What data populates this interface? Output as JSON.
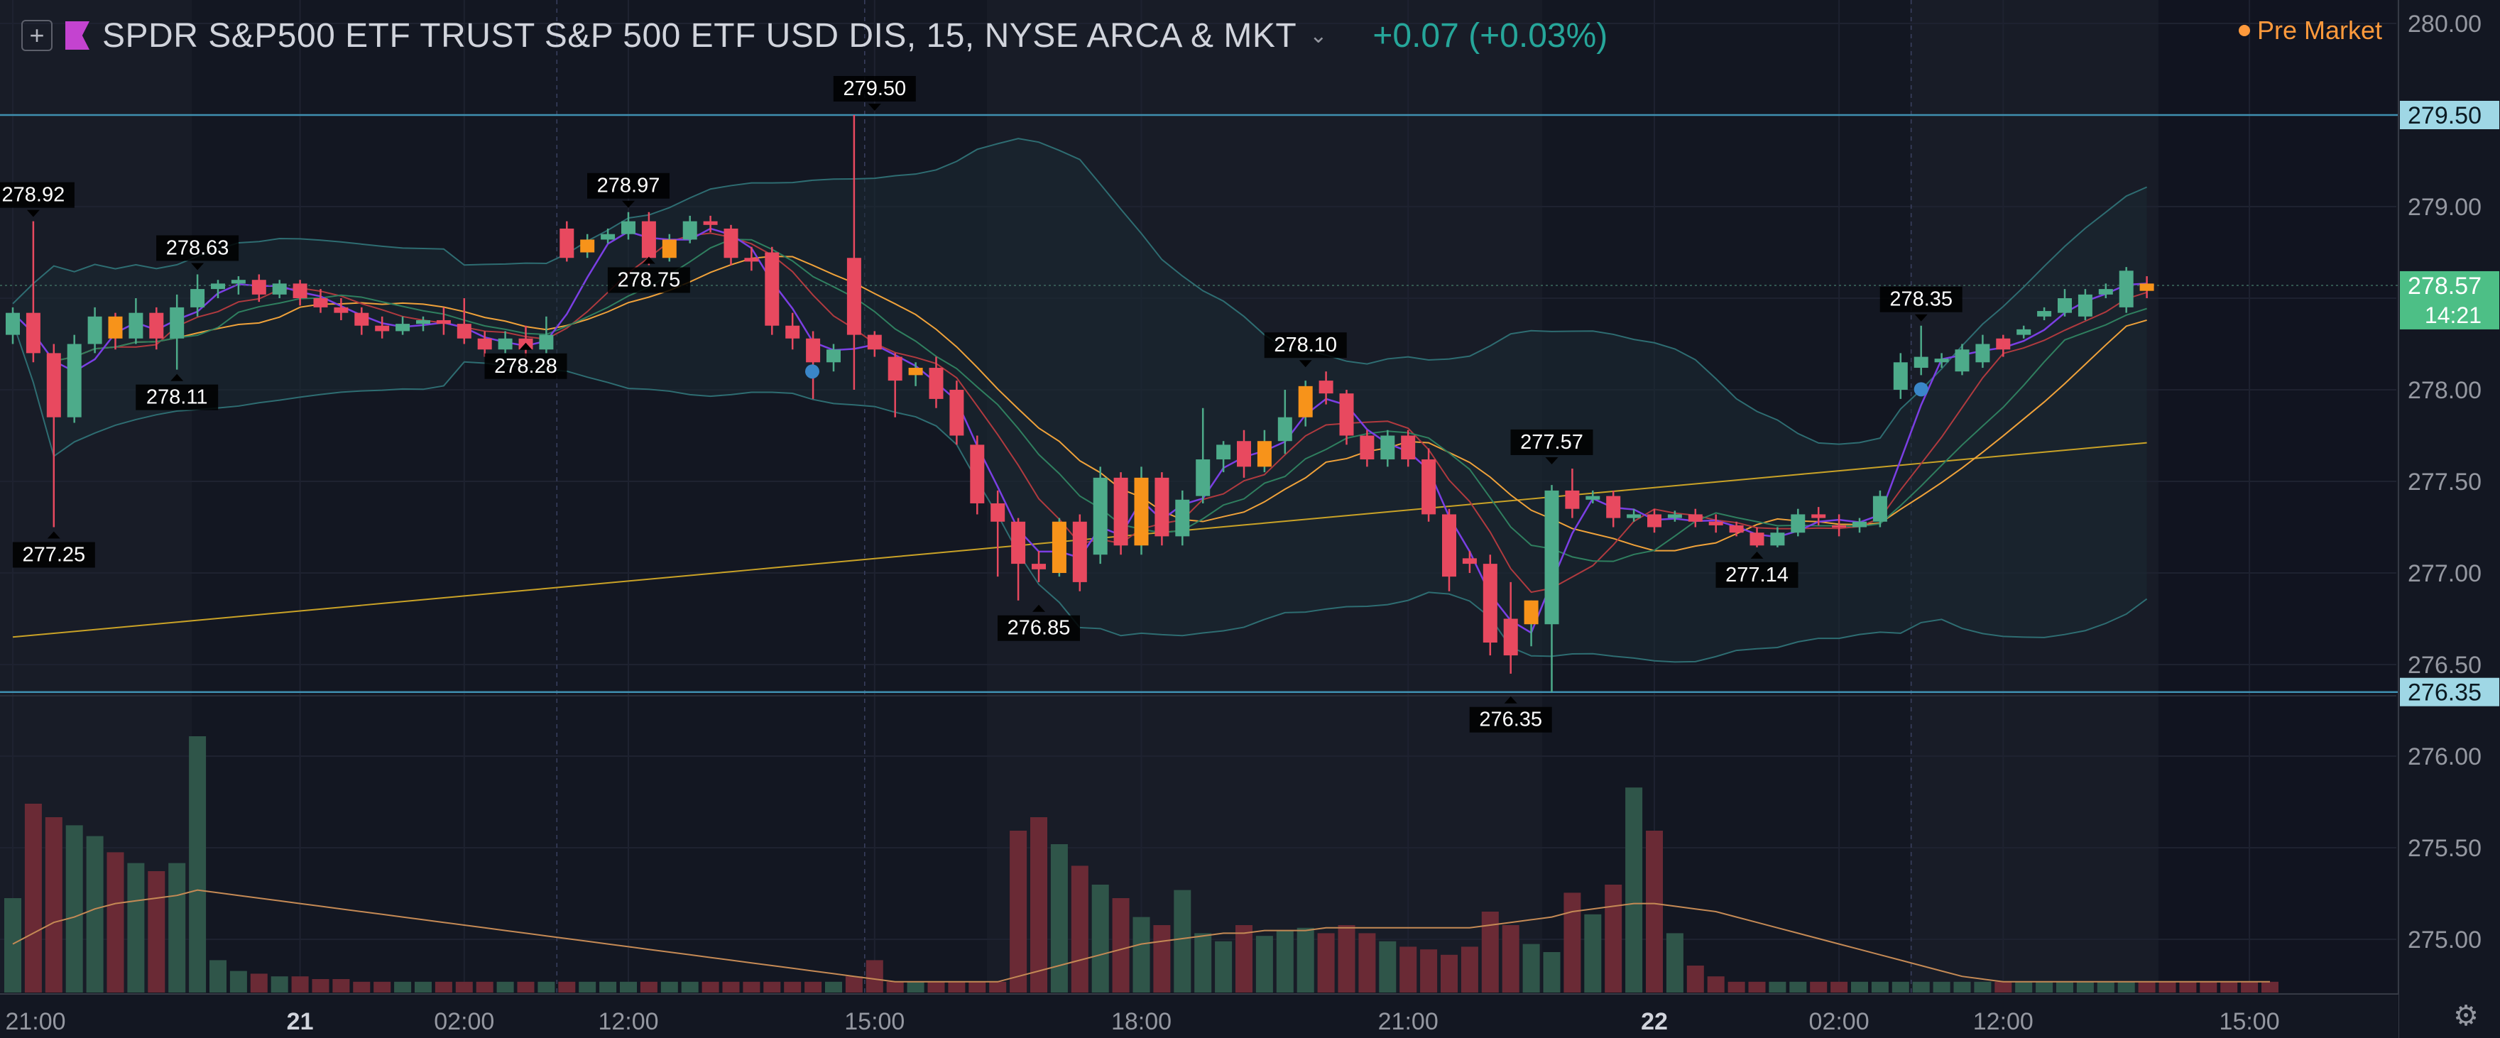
{
  "header": {
    "add_icon": "plus-square-icon",
    "flag_color": "#c443d0",
    "symbol_title": "SPDR S&P500 ETF TRUST S&P 500 ETF USD DIS, 15, NYSE ARCA & MKT",
    "change": "+0.07 (+0.03%)",
    "session_badge": "Pre Market"
  },
  "colors": {
    "up": "#4dab8a",
    "down": "#e8495f",
    "hollow_up": "#f7931a",
    "volume_up": "#2f5549",
    "volume_down": "#6a2a35",
    "bollinger": "#2e6d72",
    "ma_yellow": "#c9a227",
    "ma_orange": "#f0a23a",
    "ma_red": "#b03a3f",
    "ma_purple": "#7b3fe4",
    "ma_green": "#2f7f5f",
    "price_label": "#9fd7e5",
    "last_label": "#4dbf86"
  },
  "chart_data": {
    "type": "candlestick",
    "timeframe": "15",
    "y_axis": {
      "ticks": [
        "280.00",
        "279.50",
        "279.00",
        "278.50",
        "278.00",
        "277.50",
        "277.00",
        "276.50",
        "276.00",
        "275.50",
        "275.00"
      ],
      "ylim": [
        274.75,
        280.1
      ]
    },
    "x_axis": {
      "ticks": [
        {
          "i": 0,
          "label": "21:00",
          "bold": false
        },
        {
          "i": 14,
          "label": "21",
          "bold": true
        },
        {
          "i": 22,
          "label": "02:00",
          "bold": false
        },
        {
          "i": 30,
          "label": "12:00",
          "bold": false
        },
        {
          "i": 42,
          "label": "15:00",
          "bold": false
        },
        {
          "i": 55,
          "label": "18:00",
          "bold": false
        },
        {
          "i": 68,
          "label": "21:00",
          "bold": false
        },
        {
          "i": 80,
          "label": "22",
          "bold": true
        },
        {
          "i": 89,
          "label": "02:00",
          "bold": false
        },
        {
          "i": 97,
          "label": "12:00",
          "bold": false
        },
        {
          "i": 109,
          "label": "15:00",
          "bold": false
        }
      ]
    },
    "horizontal_lines": [
      {
        "label": "279.50",
        "value": 279.5
      },
      {
        "label": "276.35",
        "value": 276.35
      }
    ],
    "last_price": {
      "label": "278.57",
      "value": 278.57,
      "countdown": "14:21"
    },
    "annotations": [
      {
        "label": "278.92",
        "i": 1,
        "value": 278.92,
        "pos": "above"
      },
      {
        "label": "277.25",
        "i": 2,
        "value": 277.25,
        "pos": "below"
      },
      {
        "label": "278.63",
        "i": 9,
        "value": 278.63,
        "pos": "above"
      },
      {
        "label": "278.11",
        "i": 8,
        "value": 278.11,
        "pos": "below"
      },
      {
        "label": "278.97",
        "i": 30,
        "value": 278.97,
        "pos": "above"
      },
      {
        "label": "278.75",
        "i": 31,
        "value": 278.75,
        "pos": "below"
      },
      {
        "label": "278.28",
        "i": 25,
        "value": 278.28,
        "pos": "below"
      },
      {
        "label": "279.50",
        "i": 42,
        "value": 279.5,
        "pos": "above"
      },
      {
        "label": "276.85",
        "i": 50,
        "value": 276.85,
        "pos": "below"
      },
      {
        "label": "278.10",
        "i": 63,
        "value": 278.1,
        "pos": "above"
      },
      {
        "label": "277.57",
        "i": 75,
        "value": 277.57,
        "pos": "above"
      },
      {
        "label": "276.35",
        "i": 73,
        "value": 276.35,
        "pos": "below"
      },
      {
        "label": "277.14",
        "i": 85,
        "value": 277.14,
        "pos": "below"
      },
      {
        "label": "278.35",
        "i": 93,
        "value": 278.35,
        "pos": "above"
      }
    ],
    "candles": [
      {
        "o": 278.3,
        "h": 278.45,
        "c": 278.42,
        "l": 278.25
      },
      {
        "o": 278.42,
        "h": 278.92,
        "c": 278.2,
        "l": 278.15
      },
      {
        "o": 278.2,
        "h": 278.25,
        "c": 277.85,
        "l": 277.25
      },
      {
        "o": 277.85,
        "h": 278.3,
        "c": 278.25,
        "l": 277.82
      },
      {
        "o": 278.25,
        "h": 278.45,
        "c": 278.4,
        "l": 278.2
      },
      {
        "o": 278.4,
        "h": 278.42,
        "c": 278.28,
        "l": 278.22
      },
      {
        "o": 278.28,
        "h": 278.5,
        "c": 278.42,
        "l": 278.25
      },
      {
        "o": 278.42,
        "h": 278.45,
        "c": 278.28,
        "l": 278.22
      },
      {
        "o": 278.28,
        "h": 278.52,
        "c": 278.45,
        "l": 278.11
      },
      {
        "o": 278.45,
        "h": 278.63,
        "c": 278.55,
        "l": 278.4
      },
      {
        "o": 278.55,
        "h": 278.6,
        "c": 278.58,
        "l": 278.5
      },
      {
        "o": 278.58,
        "h": 278.62,
        "c": 278.6,
        "l": 278.52
      },
      {
        "o": 278.6,
        "h": 278.63,
        "c": 278.52,
        "l": 278.48
      },
      {
        "o": 278.52,
        "h": 278.6,
        "c": 278.58,
        "l": 278.5
      },
      {
        "o": 278.58,
        "h": 278.6,
        "c": 278.5,
        "l": 278.46
      },
      {
        "o": 278.5,
        "h": 278.55,
        "c": 278.45,
        "l": 278.42
      },
      {
        "o": 278.45,
        "h": 278.5,
        "c": 278.42,
        "l": 278.38
      },
      {
        "o": 278.42,
        "h": 278.45,
        "c": 278.35,
        "l": 278.3
      },
      {
        "o": 278.35,
        "h": 278.4,
        "c": 278.32,
        "l": 278.28
      },
      {
        "o": 278.32,
        "h": 278.4,
        "c": 278.36,
        "l": 278.3
      },
      {
        "o": 278.36,
        "h": 278.4,
        "c": 278.38,
        "l": 278.32
      },
      {
        "o": 278.38,
        "h": 278.45,
        "c": 278.36,
        "l": 278.3
      },
      {
        "o": 278.36,
        "h": 278.5,
        "c": 278.28,
        "l": 278.25
      },
      {
        "o": 278.28,
        "h": 278.32,
        "c": 278.22,
        "l": 278.18
      },
      {
        "o": 278.22,
        "h": 278.32,
        "c": 278.28,
        "l": 278.2
      },
      {
        "o": 278.28,
        "h": 278.35,
        "c": 278.22,
        "l": 278.18
      },
      {
        "o": 278.22,
        "h": 278.4,
        "c": 278.3,
        "l": 278.2
      },
      {
        "o": 278.88,
        "h": 278.92,
        "c": 278.72,
        "l": 278.7
      },
      {
        "o": 278.75,
        "h": 278.85,
        "c": 278.82,
        "l": 278.72
      },
      {
        "o": 278.82,
        "h": 278.88,
        "c": 278.85,
        "l": 278.8
      },
      {
        "o": 278.85,
        "h": 278.97,
        "c": 278.92,
        "l": 278.82
      },
      {
        "o": 278.92,
        "h": 278.97,
        "c": 278.72,
        "l": 278.68
      },
      {
        "o": 278.72,
        "h": 278.85,
        "c": 278.82,
        "l": 278.7
      },
      {
        "o": 278.82,
        "h": 278.95,
        "c": 278.92,
        "l": 278.8
      },
      {
        "o": 278.92,
        "h": 278.95,
        "c": 278.9,
        "l": 278.86
      },
      {
        "o": 278.88,
        "h": 278.9,
        "c": 278.72,
        "l": 278.68
      },
      {
        "o": 278.72,
        "h": 278.78,
        "c": 278.7,
        "l": 278.65
      },
      {
        "o": 278.75,
        "h": 278.78,
        "c": 278.35,
        "l": 278.3
      },
      {
        "o": 278.35,
        "h": 278.42,
        "c": 278.28,
        "l": 278.22
      },
      {
        "o": 278.28,
        "h": 278.32,
        "c": 278.15,
        "l": 277.95
      },
      {
        "o": 278.15,
        "h": 278.25,
        "c": 278.22,
        "l": 278.1
      },
      {
        "o": 278.72,
        "h": 279.5,
        "c": 278.3,
        "l": 278.0
      },
      {
        "o": 278.3,
        "h": 278.32,
        "c": 278.22,
        "l": 278.18
      },
      {
        "o": 278.18,
        "h": 278.2,
        "c": 278.05,
        "l": 277.85
      },
      {
        "o": 278.08,
        "h": 278.15,
        "c": 278.12,
        "l": 278.02
      },
      {
        "o": 278.12,
        "h": 278.18,
        "c": 277.95,
        "l": 277.9
      },
      {
        "o": 278.0,
        "h": 278.05,
        "c": 277.75,
        "l": 277.7
      },
      {
        "o": 277.7,
        "h": 277.75,
        "c": 277.38,
        "l": 277.32
      },
      {
        "o": 277.38,
        "h": 277.45,
        "c": 277.28,
        "l": 276.98
      },
      {
        "o": 277.28,
        "h": 277.3,
        "c": 277.05,
        "l": 276.85
      },
      {
        "o": 277.05,
        "h": 277.12,
        "c": 277.02,
        "l": 276.95
      },
      {
        "o": 277.0,
        "h": 277.3,
        "c": 277.28,
        "l": 276.98
      },
      {
        "o": 277.28,
        "h": 277.32,
        "c": 276.95,
        "l": 276.9
      },
      {
        "o": 277.1,
        "h": 277.58,
        "c": 277.52,
        "l": 277.05
      },
      {
        "o": 277.52,
        "h": 277.55,
        "c": 277.15,
        "l": 277.1
      },
      {
        "o": 277.15,
        "h": 277.58,
        "c": 277.52,
        "l": 277.1
      },
      {
        "o": 277.52,
        "h": 277.55,
        "c": 277.2,
        "l": 277.15
      },
      {
        "o": 277.2,
        "h": 277.45,
        "c": 277.4,
        "l": 277.15
      },
      {
        "o": 277.42,
        "h": 277.9,
        "c": 277.62,
        "l": 277.38
      },
      {
        "o": 277.62,
        "h": 277.72,
        "c": 277.7,
        "l": 277.55
      },
      {
        "o": 277.72,
        "h": 277.78,
        "c": 277.58,
        "l": 277.52
      },
      {
        "o": 277.58,
        "h": 277.78,
        "c": 277.72,
        "l": 277.55
      },
      {
        "o": 277.72,
        "h": 278.0,
        "c": 277.85,
        "l": 277.65
      },
      {
        "o": 277.85,
        "h": 278.05,
        "c": 278.02,
        "l": 277.8
      },
      {
        "o": 278.05,
        "h": 278.1,
        "c": 277.98,
        "l": 277.92
      },
      {
        "o": 277.98,
        "h": 278.0,
        "c": 277.75,
        "l": 277.7
      },
      {
        "o": 277.75,
        "h": 277.78,
        "c": 277.62,
        "l": 277.58
      },
      {
        "o": 277.62,
        "h": 277.78,
        "c": 277.75,
        "l": 277.58
      },
      {
        "o": 277.75,
        "h": 277.78,
        "c": 277.62,
        "l": 277.58
      },
      {
        "o": 277.62,
        "h": 277.68,
        "c": 277.32,
        "l": 277.28
      },
      {
        "o": 277.32,
        "h": 277.35,
        "c": 276.98,
        "l": 276.9
      },
      {
        "o": 277.08,
        "h": 277.12,
        "c": 277.05,
        "l": 277.0
      },
      {
        "o": 277.05,
        "h": 277.1,
        "c": 276.62,
        "l": 276.55
      },
      {
        "o": 276.75,
        "h": 276.95,
        "c": 276.55,
        "l": 276.45
      },
      {
        "o": 276.72,
        "h": 276.85,
        "c": 276.85,
        "l": 276.6
      },
      {
        "o": 276.72,
        "h": 277.48,
        "c": 277.45,
        "l": 276.35
      },
      {
        "o": 277.45,
        "h": 277.57,
        "c": 277.35,
        "l": 277.3
      },
      {
        "o": 277.4,
        "h": 277.45,
        "c": 277.42,
        "l": 277.38
      },
      {
        "o": 277.42,
        "h": 277.45,
        "c": 277.3,
        "l": 277.25
      },
      {
        "o": 277.3,
        "h": 277.35,
        "c": 277.32,
        "l": 277.28
      },
      {
        "o": 277.32,
        "h": 277.35,
        "c": 277.25,
        "l": 277.22
      },
      {
        "o": 277.3,
        "h": 277.34,
        "c": 277.32,
        "l": 277.28
      },
      {
        "o": 277.32,
        "h": 277.35,
        "c": 277.28,
        "l": 277.25
      },
      {
        "o": 277.28,
        "h": 277.32,
        "c": 277.26,
        "l": 277.22
      },
      {
        "o": 277.26,
        "h": 277.28,
        "c": 277.22,
        "l": 277.2
      },
      {
        "o": 277.22,
        "h": 277.25,
        "c": 277.15,
        "l": 277.14
      },
      {
        "o": 277.15,
        "h": 277.25,
        "c": 277.22,
        "l": 277.14
      },
      {
        "o": 277.22,
        "h": 277.35,
        "c": 277.32,
        "l": 277.2
      },
      {
        "o": 277.32,
        "h": 277.36,
        "c": 277.3,
        "l": 277.26
      },
      {
        "o": 277.26,
        "h": 277.32,
        "c": 277.25,
        "l": 277.2
      },
      {
        "o": 277.25,
        "h": 277.3,
        "c": 277.28,
        "l": 277.22
      },
      {
        "o": 277.28,
        "h": 277.45,
        "c": 277.42,
        "l": 277.25
      },
      {
        "o": 278.0,
        "h": 278.2,
        "c": 278.15,
        "l": 277.95
      },
      {
        "o": 278.12,
        "h": 278.35,
        "c": 278.18,
        "l": 278.08
      },
      {
        "o": 278.15,
        "h": 278.2,
        "c": 278.17,
        "l": 278.12
      },
      {
        "o": 278.1,
        "h": 278.25,
        "c": 278.22,
        "l": 278.08
      },
      {
        "o": 278.15,
        "h": 278.3,
        "c": 278.25,
        "l": 278.12
      },
      {
        "o": 278.28,
        "h": 278.3,
        "c": 278.22,
        "l": 278.18
      },
      {
        "o": 278.3,
        "h": 278.35,
        "c": 278.33,
        "l": 278.28
      },
      {
        "o": 278.4,
        "h": 278.45,
        "c": 278.43,
        "l": 278.38
      },
      {
        "o": 278.42,
        "h": 278.55,
        "c": 278.5,
        "l": 278.4
      },
      {
        "o": 278.4,
        "h": 278.55,
        "c": 278.52,
        "l": 278.38
      },
      {
        "o": 278.52,
        "h": 278.58,
        "c": 278.55,
        "l": 278.5
      },
      {
        "o": 278.45,
        "h": 278.67,
        "c": 278.65,
        "l": 278.42
      },
      {
        "o": 278.58,
        "h": 278.62,
        "c": 278.54,
        "l": 278.5
      }
    ],
    "hollow_orange_indices": [
      5,
      28,
      32,
      44,
      51,
      55,
      61,
      63,
      74,
      104
    ],
    "volume": [
      35,
      70,
      65,
      62,
      58,
      52,
      48,
      45,
      48,
      95,
      12,
      8,
      7,
      6,
      6,
      5,
      5,
      4,
      4,
      4,
      4,
      4,
      4,
      4,
      4,
      4,
      4,
      4,
      4,
      4,
      4,
      4,
      4,
      4,
      4,
      4,
      4,
      4,
      4,
      4,
      4,
      6,
      12,
      4,
      4,
      4,
      4,
      4,
      4,
      60,
      65,
      55,
      47,
      40,
      35,
      28,
      25,
      38,
      22,
      19,
      25,
      21,
      23,
      24,
      22,
      25,
      22,
      19,
      17,
      16,
      14,
      17,
      30,
      25,
      18,
      15,
      37,
      29,
      40,
      76,
      60,
      22,
      10,
      6,
      4,
      4,
      4,
      4,
      4,
      4,
      4,
      4,
      4,
      4,
      4,
      4,
      4,
      4,
      4,
      4,
      4,
      4,
      4,
      4,
      4,
      4,
      4,
      4,
      4,
      4,
      4
    ],
    "volume_ma": [
      18,
      22,
      26,
      28,
      31,
      33,
      34,
      35,
      36,
      38,
      37,
      36,
      35,
      34,
      33,
      32,
      31,
      30,
      29,
      28,
      27,
      26,
      25,
      24,
      23,
      22,
      21,
      20,
      19,
      18,
      17,
      16,
      15,
      14,
      13,
      12,
      11,
      10,
      9,
      8,
      7,
      6,
      5,
      4,
      4,
      4,
      4,
      4,
      4,
      6,
      8,
      10,
      12,
      14,
      16,
      18,
      19,
      20,
      21,
      22,
      22,
      23,
      23,
      23,
      24,
      24,
      24,
      24,
      24,
      24,
      24,
      24,
      25,
      26,
      27,
      28,
      30,
      31,
      32,
      33,
      33,
      32,
      31,
      30,
      28,
      26,
      24,
      22,
      20,
      18,
      16,
      14,
      12,
      10,
      8,
      6,
      5,
      4,
      4,
      4,
      4,
      4,
      4,
      4,
      4,
      4,
      4,
      4,
      4,
      4,
      4
    ],
    "volume_ylim": [
      0,
      100
    ]
  }
}
